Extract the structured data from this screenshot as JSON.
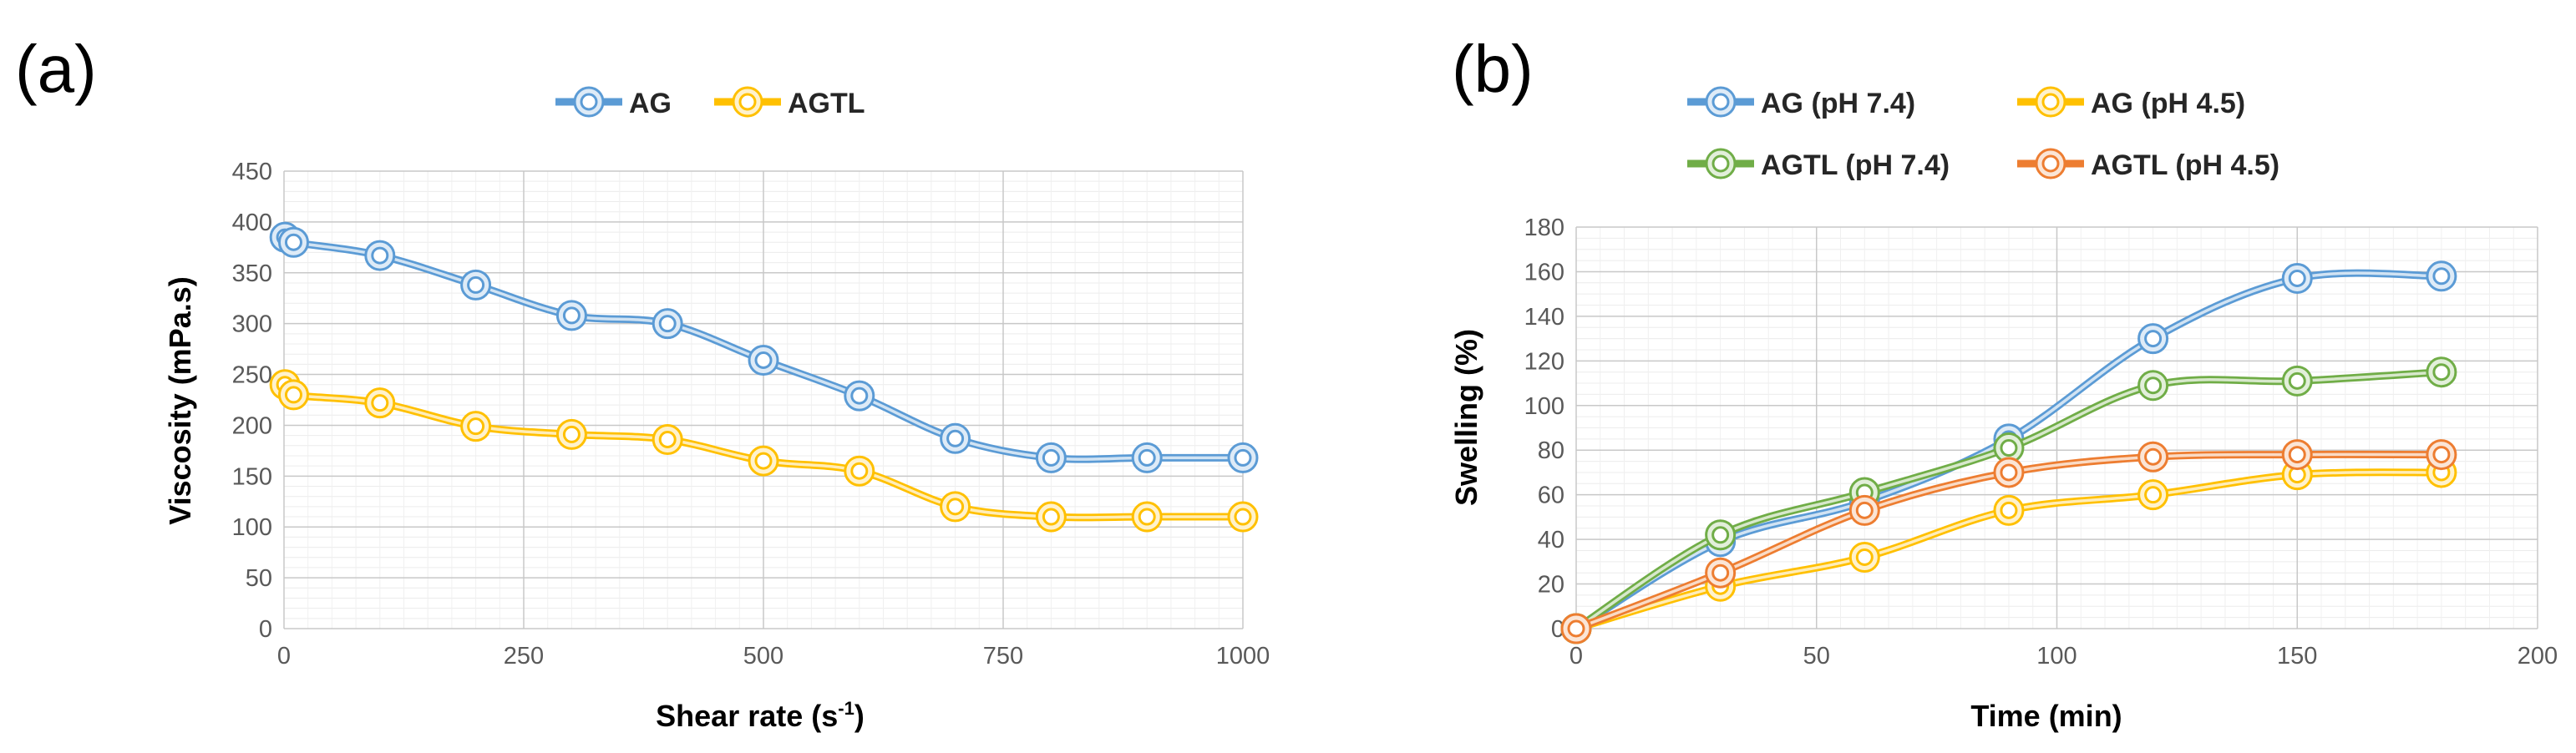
{
  "chart_data": [
    {
      "id": "a",
      "type": "line",
      "panel_label": "(a)",
      "xlabel": "Shear rate (s",
      "xlabel_sup": "-1",
      "xlabel_end": ")",
      "ylabel": "Viscosity (mPa.s)",
      "xlim": [
        0,
        1000
      ],
      "ylim": [
        0,
        450
      ],
      "xticks": [
        "0",
        "250",
        "500",
        "750",
        "1000"
      ],
      "yticks": [
        "0",
        "50",
        "100",
        "150",
        "200",
        "250",
        "300",
        "350",
        "400",
        "450"
      ],
      "grid": true,
      "legend_position": "top",
      "x": [
        1,
        10,
        100,
        200,
        300,
        400,
        500,
        600,
        700,
        800,
        900,
        1000
      ],
      "series": [
        {
          "name": "AG",
          "color": "#5B9BD5",
          "values": [
            385,
            380,
            367,
            338,
            308,
            300,
            264,
            229,
            187,
            168,
            168,
            168
          ]
        },
        {
          "name": "AGTL",
          "color": "#FFC000",
          "values": [
            240,
            230,
            222,
            199,
            191,
            186,
            165,
            155,
            120,
            110,
            110,
            110
          ]
        }
      ]
    },
    {
      "id": "b",
      "type": "line",
      "panel_label": "(b)",
      "xlabel": "Time (min)",
      "ylabel": "Swelling (%)",
      "xlim": [
        0,
        200
      ],
      "ylim": [
        0,
        180
      ],
      "xticks": [
        "0",
        "50",
        "100",
        "150",
        "200"
      ],
      "yticks": [
        "0",
        "20",
        "40",
        "60",
        "80",
        "100",
        "120",
        "140",
        "160",
        "180"
      ],
      "grid": true,
      "legend_position": "top",
      "x": [
        0,
        30,
        60,
        90,
        120,
        150,
        180
      ],
      "series": [
        {
          "name": "AG (pH 7.4)",
          "color": "#5B9BD5",
          "values": [
            0,
            39,
            57,
            85,
            130,
            157,
            158
          ]
        },
        {
          "name": "AG (pH 4.5)",
          "color": "#FFC000",
          "values": [
            0,
            19,
            32,
            53,
            60,
            69,
            70
          ]
        },
        {
          "name": "AGTL (pH 7.4)",
          "color": "#70AD47",
          "values": [
            0,
            42,
            61,
            81,
            109,
            111,
            115
          ]
        },
        {
          "name": "AGTL (pH 4.5)",
          "color": "#ED7D31",
          "values": [
            0,
            25,
            53,
            70,
            77,
            78,
            78
          ]
        }
      ]
    }
  ]
}
